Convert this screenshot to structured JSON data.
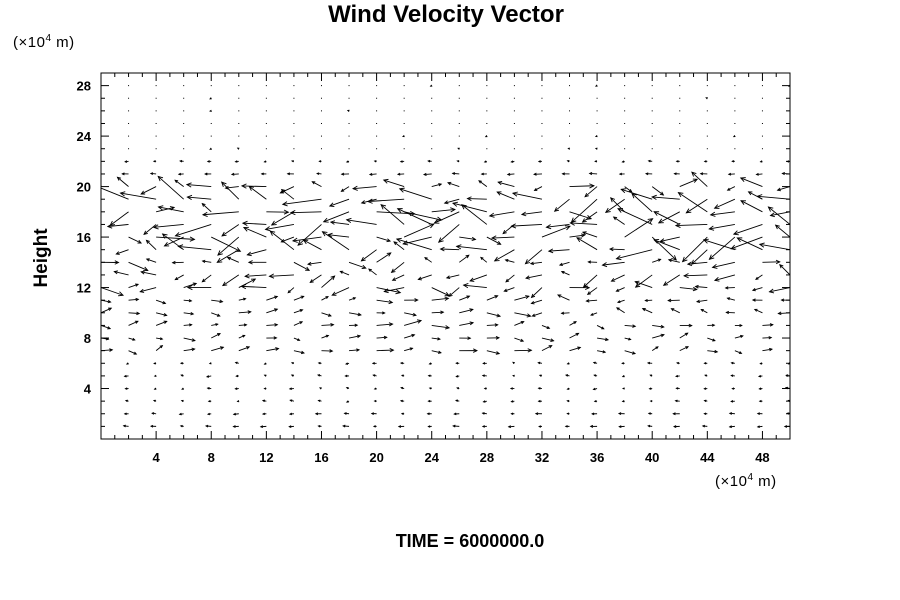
{
  "chart_data": {
    "type": "vector-field",
    "title": "Wind Velocity Vector",
    "xlabel": "",
    "ylabel": "Height",
    "x_unit_text": "(×10",
    "x_unit_exp": "4",
    "x_unit_suffix": " m)",
    "y_unit_text": "(×10",
    "y_unit_exp": "4",
    "y_unit_suffix": " m)",
    "xlim": [
      0,
      50
    ],
    "ylim": [
      0,
      29
    ],
    "x_ticks": [
      4,
      8,
      12,
      16,
      20,
      24,
      28,
      32,
      36,
      40,
      44,
      48
    ],
    "y_ticks": [
      4,
      8,
      12,
      16,
      20,
      24,
      28
    ],
    "x_tick_labels": [
      "4",
      "8",
      "12",
      "16",
      "20",
      "24",
      "28",
      "32",
      "36",
      "40",
      "44",
      "48"
    ],
    "y_tick_labels": [
      "4",
      "8",
      "12",
      "16",
      "20",
      "24",
      "28"
    ],
    "grid_dx": 2,
    "grid_dy": 1,
    "notes": "Vectors are strongest between heights ~12 and ~20 (x10^4 m), mostly easterly/westerly with turbulence; moderate vectors near heights 7-11; near-zero above ~21 and small near the bottom."
  },
  "footer": {
    "time_label": "TIME = 6000000.0"
  }
}
